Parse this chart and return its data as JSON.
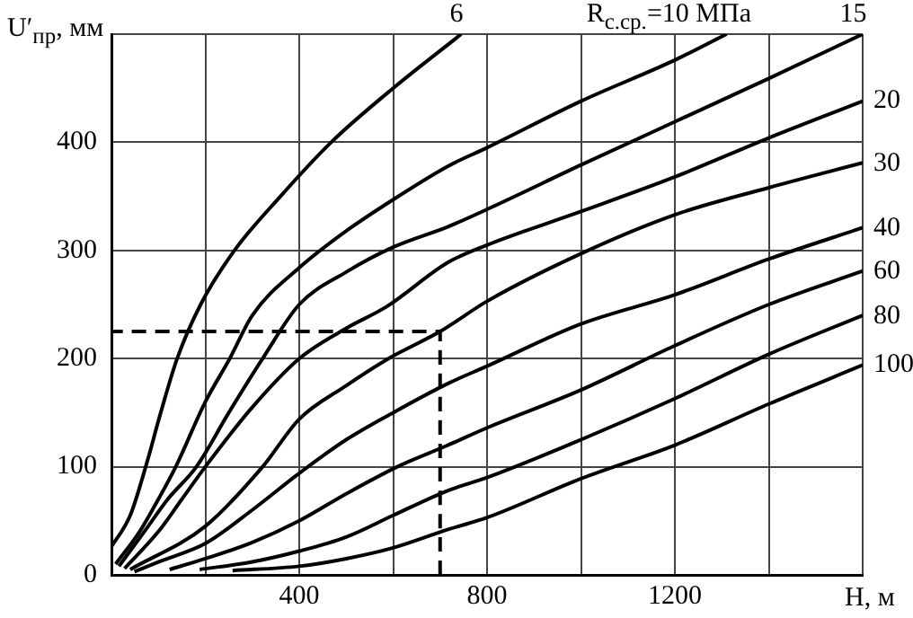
{
  "chart_data": {
    "type": "line",
    "xlabel": "H, м",
    "ylabel": "U′$_{пр}$, мм",
    "xlim": [
      0,
      1600
    ],
    "ylim": [
      0,
      500
    ],
    "xticks": [
      {
        "value": 0,
        "label": null
      },
      {
        "value": 200,
        "label": null
      },
      400,
      {
        "value": 600,
        "label": null
      },
      800,
      {
        "value": 1000,
        "label": null
      },
      1200,
      {
        "value": 1400,
        "label": null
      },
      {
        "value": 1600,
        "label": null
      }
    ],
    "yticks": [
      0,
      100,
      200,
      300,
      400,
      {
        "value": 500,
        "label": null
      }
    ],
    "grid": true,
    "marker": "none",
    "line_style": "solid",
    "series": [
      {
        "name": "6",
        "color": "#000000",
        "x": [
          0,
          40,
          73,
          105,
          140,
          190,
          262,
          360,
          468,
          600,
          745
        ],
        "values": [
          26,
          55,
          100,
          150,
          200,
          250,
          300,
          350,
          400,
          450,
          500
        ]
      },
      {
        "name": "R$_{с.ср.}$=10 МПа",
        "color": "#000000",
        "x": [
          9,
          60,
          100,
          137,
          200,
          252,
          300,
          400,
          500,
          600,
          717,
          800,
          1000,
          1200,
          1310
        ],
        "values": [
          10,
          40,
          70,
          100,
          160,
          200,
          240,
          284,
          318,
          347,
          378,
          395,
          438,
          476,
          500
        ]
      },
      {
        "name": "15",
        "color": "#000000",
        "x": [
          16,
          70,
          120,
          181,
          250,
          322,
          400,
          500,
          600,
          717,
          800,
          1000,
          1200,
          1400,
          1600
        ],
        "values": [
          8,
          40,
          70,
          100,
          150,
          200,
          250,
          280,
          303,
          322,
          338,
          379,
          419,
          459,
          500
        ]
      },
      {
        "name": "20",
        "color": "#000000",
        "x": [
          28,
          100,
          150,
          200,
          300,
          400,
          500,
          586,
          717,
          800,
          1000,
          1200,
          1400,
          1600
        ],
        "values": [
          6,
          40,
          70,
          100,
          155,
          200,
          228,
          248,
          289,
          305,
          336,
          368,
          404,
          438
        ]
      },
      {
        "name": "30",
        "color": "#000000",
        "x": [
          40,
          200,
          322,
          400,
          500,
          590,
          700,
          800,
          1000,
          1200,
          1400,
          1600
        ],
        "values": [
          5,
          45,
          100,
          144,
          175,
          200,
          225,
          253,
          297,
          333,
          358,
          381
        ]
      },
      {
        "name": "40",
        "color": "#000000",
        "x": [
          49,
          100,
          200,
          300,
          400,
          500,
          600,
          717,
          800,
          1000,
          1200,
          1400,
          1600
        ],
        "values": [
          3,
          12,
          29,
          60,
          94,
          125,
          150,
          177,
          193,
          232,
          259,
          292,
          321
        ]
      },
      {
        "name": "60",
        "color": "#000000",
        "x": [
          124,
          200,
          300,
          400,
          500,
          609,
          717,
          800,
          1000,
          1200,
          1400,
          1600
        ],
        "values": [
          5,
          15,
          30,
          50,
          75,
          100,
          120,
          136,
          171,
          212,
          250,
          281
        ]
      },
      {
        "name": "80",
        "color": "#000000",
        "x": [
          188,
          300,
          400,
          500,
          600,
          717,
          800,
          1000,
          1200,
          1400,
          1600
        ],
        "values": [
          5,
          12,
          22,
          35,
          55,
          78,
          90,
          125,
          163,
          204,
          240
        ]
      },
      {
        "name": "100",
        "color": "#000000",
        "x": [
          258,
          400,
          500,
          600,
          717,
          800,
          1000,
          1200,
          1400,
          1600
        ],
        "values": [
          4,
          8,
          15,
          25,
          42,
          53,
          89,
          120,
          158,
          194
        ]
      },
      {
        "color": "#000000",
        "line_style": "dashed",
        "x": [
          700,
          700,
          0
        ],
        "values": [
          0,
          225,
          225
        ]
      }
    ]
  }
}
